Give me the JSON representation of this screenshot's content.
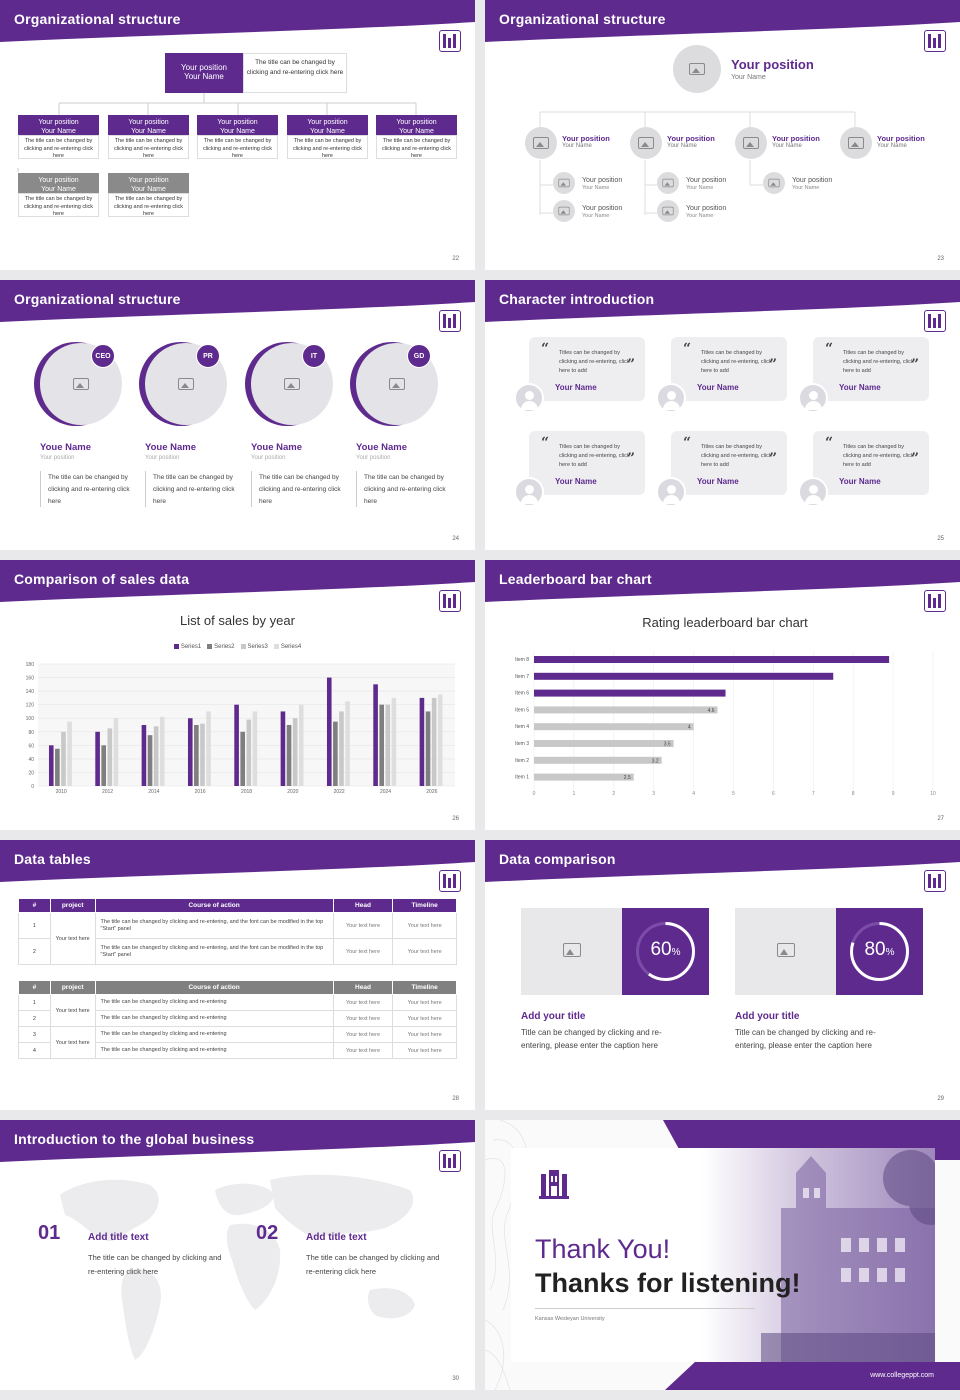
{
  "slide22": {
    "title": "Organizational structure",
    "page": "22",
    "top_box": {
      "position": "Your position",
      "name": "Your Name",
      "caption": "The title can be changed by clicking and re-entering click here"
    },
    "boxes": [
      {
        "position": "Your position",
        "name": "Your Name",
        "caption": "The title can be changed by clicking and re-entering click here"
      },
      {
        "position": "Your position",
        "name": "Your Name",
        "caption": "The title can be changed by clicking and re-entering click here"
      },
      {
        "position": "Your position",
        "name": "Your Name",
        "caption": "The title can be changed by clicking and re-entering click here"
      },
      {
        "position": "Your position",
        "name": "Your Name",
        "caption": "The title can be changed by clicking and re-entering click here"
      },
      {
        "position": "Your position",
        "name": "Your Name",
        "caption": "The title can be changed by clicking and re-entering click here"
      }
    ],
    "gray_boxes": [
      {
        "position": "Your position",
        "name": "Your Name",
        "caption": "The title can be changed by clicking and re-entering click here"
      },
      {
        "position": "Your position",
        "name": "Your Name",
        "caption": "The title can be changed by clicking and re-entering click here"
      }
    ]
  },
  "slide23": {
    "title": "Organizational structure",
    "page": "23",
    "top": {
      "position": "Your position",
      "name": "Your Name"
    },
    "level2": [
      {
        "position": "Your position",
        "name": "Your Name"
      },
      {
        "position": "Your position",
        "name": "Your Name"
      },
      {
        "position": "Your position",
        "name": "Your Name"
      },
      {
        "position": "Your position",
        "name": "Your Name"
      }
    ],
    "level3": [
      {
        "position": "Your position",
        "name": "Your Name"
      },
      {
        "position": "Your position",
        "name": "Your Name"
      },
      {
        "position": "Your position",
        "name": "Your Name"
      },
      {
        "position": "Your position",
        "name": "Your Name"
      },
      {
        "position": "Your position",
        "name": "Your Name"
      }
    ]
  },
  "slide24": {
    "title": "Organizational structure",
    "page": "24",
    "people": [
      {
        "badge": "CEO",
        "name": "Youe Name",
        "position": "Your position",
        "text": "The title can be changed by clicking and re-entering click here"
      },
      {
        "badge": "PR",
        "name": "Youe Name",
        "position": "Your position",
        "text": "The title can be changed by clicking and re-entering click here"
      },
      {
        "badge": "IT",
        "name": "Youe Name",
        "position": "Your position",
        "text": "The title can be changed by clicking and re-entering click here"
      },
      {
        "badge": "GD",
        "name": "Youe Name",
        "position": "Your position",
        "text": "The title can be changed by clicking and re-entering click here"
      }
    ]
  },
  "slide25": {
    "title": "Character introduction",
    "page": "25",
    "cards": [
      {
        "text": "Titles can be changed by clicking and re-entering, click here to add",
        "name": "Your Name"
      },
      {
        "text": "Titles can be changed by clicking and re-entering, click here to add",
        "name": "Your Name"
      },
      {
        "text": "Titles can be changed by clicking and re-entering, click here to add",
        "name": "Your Name"
      },
      {
        "text": "Titles can be changed by clicking and re-entering, click here to add",
        "name": "Your Name"
      },
      {
        "text": "Titles can be changed by clicking and re-entering, click here to add",
        "name": "Your Name"
      },
      {
        "text": "Titles can be changed by clicking and re-entering, click here to add",
        "name": "Your Name"
      }
    ]
  },
  "slide26": {
    "title": "Comparison of sales data",
    "page": "26"
  },
  "slide27": {
    "title": "Leaderboard bar chart",
    "page": "27"
  },
  "slide28": {
    "title": "Data tables",
    "page": "28",
    "table1": {
      "headers": [
        "#",
        "project",
        "Course of action",
        "Head",
        "Timeline"
      ],
      "group": "Your text here",
      "rows": [
        {
          "num": "1",
          "action": "The title can be changed by clicking and re-entering, and the font can be modified in the top \"Start\" panel",
          "head": "Your text here",
          "timeline": "Your text here"
        },
        {
          "num": "2",
          "action": "The title can be changed by clicking and re-entering, and the font can be modified in the top \"Start\" panel",
          "head": "Your text here",
          "timeline": "Your text here"
        }
      ]
    },
    "table2": {
      "headers": [
        "#",
        "project",
        "Course of action",
        "Head",
        "Timeline"
      ],
      "groups": [
        "Your text here",
        "Your text here"
      ],
      "rows": [
        {
          "num": "1",
          "action": "The title can be changed by clicking and re-entering",
          "head": "Your text here",
          "timeline": "Your text here"
        },
        {
          "num": "2",
          "action": "The title can be changed by clicking and re-entering",
          "head": "Your text here",
          "timeline": "Your text here"
        },
        {
          "num": "3",
          "action": "The title can be changed by clicking and re-entering",
          "head": "Your text here",
          "timeline": "Your text here"
        },
        {
          "num": "4",
          "action": "The title can be changed by clicking and re-entering",
          "head": "Your text here",
          "timeline": "Your text here"
        }
      ]
    }
  },
  "slide29": {
    "title": "Data comparison",
    "page": "29",
    "items": [
      {
        "percent": "60",
        "unit": "%",
        "value": 0.6,
        "heading": "Add your title",
        "text": "Title can be changed by clicking and re-entering, please enter the caption here"
      },
      {
        "percent": "80",
        "unit": "%",
        "value": 0.8,
        "heading": "Add your title",
        "text": "Title can be changed by clicking and re-entering, please enter the caption here"
      }
    ]
  },
  "slide30": {
    "title": "Introduction to the global business",
    "page": "30",
    "items": [
      {
        "num": "01",
        "heading": "Add title text",
        "text": "The title can be changed by clicking and re-entering click here"
      },
      {
        "num": "02",
        "heading": "Add title text",
        "text": "The title can be changed by clicking and re-entering click here"
      }
    ]
  },
  "slide31": {
    "line1": "Thank You!",
    "line2": "Thanks for listening!",
    "university": "Kansas Wesleyan University",
    "website": "www.collegeppt.com"
  },
  "chart_data": [
    {
      "type": "bar",
      "title": "List of sales by year",
      "categories": [
        "2010",
        "2012",
        "2014",
        "2016",
        "2018",
        "2020",
        "2022",
        "2024",
        "2026"
      ],
      "series": [
        {
          "name": "Series1",
          "values": [
            60,
            80,
            90,
            100,
            120,
            110,
            160,
            150,
            130
          ],
          "color": "#5e2a8e"
        },
        {
          "name": "Series2",
          "values": [
            55,
            60,
            75,
            90,
            80,
            90,
            95,
            120,
            110
          ],
          "color": "#7f7f7f"
        },
        {
          "name": "Series3",
          "values": [
            80,
            85,
            88,
            92,
            98,
            100,
            110,
            120,
            130
          ],
          "color": "#c8c8c8"
        },
        {
          "name": "Series4",
          "values": [
            95,
            100,
            102,
            110,
            110,
            120,
            125,
            130,
            135
          ],
          "color": "#dedede"
        }
      ],
      "ylim": [
        0,
        180
      ],
      "yticks": [
        "0",
        "20",
        "40",
        "60",
        "80",
        "100",
        "120",
        "140",
        "160",
        "180"
      ],
      "legend": "top-center",
      "grid": true
    },
    {
      "type": "bar",
      "orientation": "horizontal",
      "title": "Rating leaderboard bar chart",
      "categories": [
        "Item 8",
        "Item 7",
        "Item 6",
        "Item 5",
        "Item 4",
        "Item 3",
        "Item 2",
        "Item 1"
      ],
      "values": [
        8.9,
        7.5,
        4.8,
        4.6,
        4,
        3.5,
        3.2,
        2.5
      ],
      "labels": [
        "",
        "",
        "",
        "4.6",
        "4",
        "3.5",
        "3.2",
        "2.5"
      ],
      "highlight_color": "#5e2a8e",
      "base_color": "#c8c8c8",
      "xlim": [
        0,
        10
      ],
      "xticks": [
        "0",
        "1",
        "2",
        "3",
        "4",
        "5",
        "6",
        "7",
        "8",
        "9",
        "10"
      ],
      "grid": true
    }
  ]
}
